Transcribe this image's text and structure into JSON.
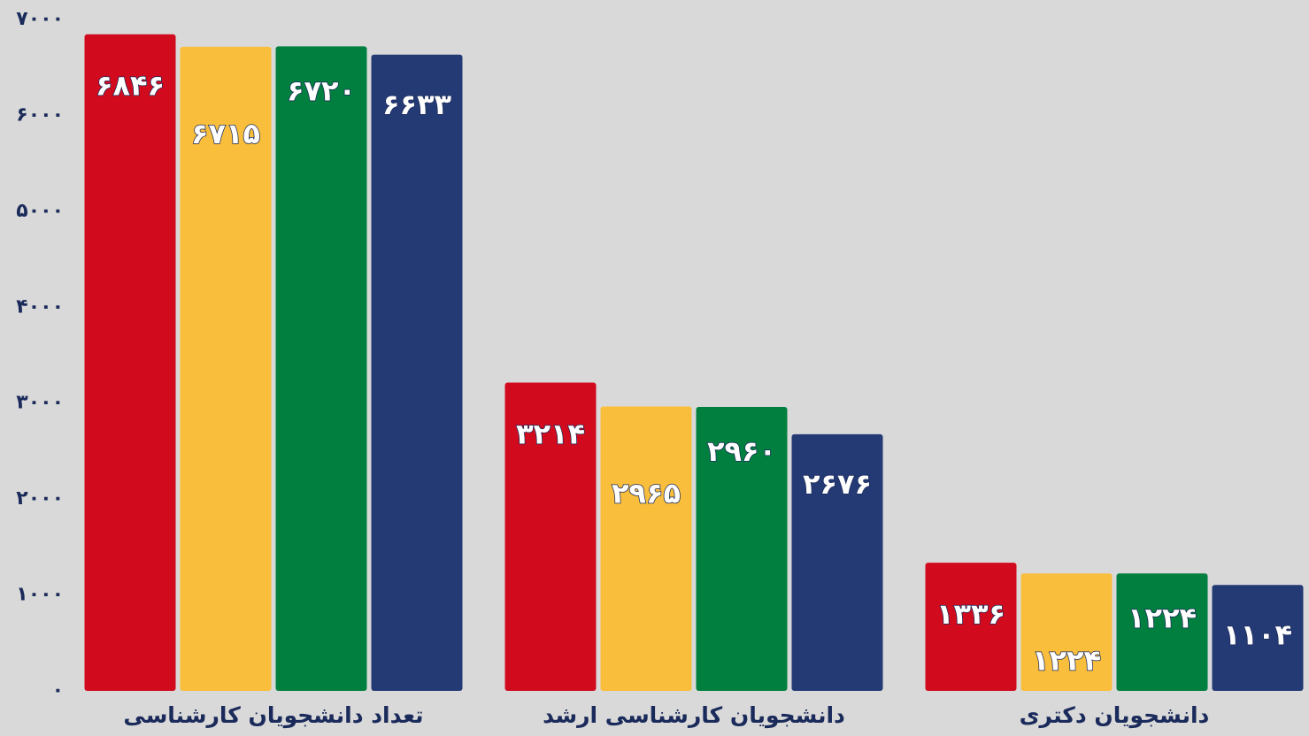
{
  "chart_data": {
    "type": "bar",
    "categories": [
      "تعداد دانشجویان کارشناسی",
      "دانشجویان کارشناسی ارشد",
      "دانشجویان دکتری"
    ],
    "series": [
      {
        "color": "#d20a1e",
        "values": [
          6846,
          3214,
          1336
        ],
        "value_labels": [
          "۶۸۴۶",
          "۳۲۱۴",
          "۱۳۳۶"
        ]
      },
      {
        "color": "#f9be3b",
        "values": [
          6715,
          2965,
          1224
        ],
        "value_labels": [
          "۶۷۱۵",
          "۲۹۶۵",
          "۱۲۲۴"
        ]
      },
      {
        "color": "#007f3f",
        "values": [
          6720,
          2960,
          1224
        ],
        "value_labels": [
          "۶۷۲۰",
          "۲۹۶۰",
          "۱۲۲۴"
        ]
      },
      {
        "color": "#243a75",
        "values": [
          6633,
          2676,
          1104
        ],
        "value_labels": [
          "۶۶۳۳",
          "۲۶۷۶",
          "۱۱۰۴"
        ]
      }
    ],
    "ylim": [
      0,
      7000
    ],
    "yticks": [
      {
        "value": 0,
        "label": "۰"
      },
      {
        "value": 1000,
        "label": "۱۰۰۰"
      },
      {
        "value": 2000,
        "label": "۲۰۰۰"
      },
      {
        "value": 3000,
        "label": "۳۰۰۰"
      },
      {
        "value": 4000,
        "label": "۴۰۰۰"
      },
      {
        "value": 5000,
        "label": "۵۰۰۰"
      },
      {
        "value": 6000,
        "label": "۶۰۰۰"
      },
      {
        "value": 7000,
        "label": "۷۰۰۰"
      }
    ],
    "grid": false
  }
}
